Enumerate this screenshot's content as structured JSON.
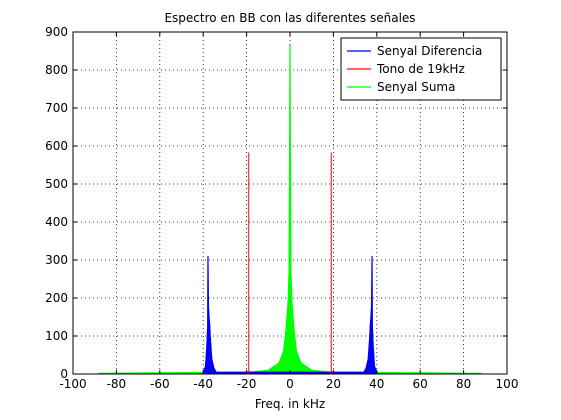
{
  "chart_data": {
    "type": "line",
    "title": "Espectro en BB con las diferentes señales",
    "xlabel": "Freq. in kHz",
    "ylabel": "",
    "xlim": [
      -100,
      100
    ],
    "ylim": [
      0,
      900
    ],
    "xticks": [
      -100,
      -80,
      -60,
      -40,
      -20,
      0,
      20,
      40,
      60,
      80,
      100
    ],
    "yticks": [
      0,
      100,
      200,
      300,
      400,
      500,
      600,
      700,
      800,
      900
    ],
    "grid": true,
    "legend_position": "top-right",
    "series": [
      {
        "name": "Senyal Diferencia",
        "color": "#0000ff",
        "x": [
          -40,
          -39,
          -38.5,
          -38,
          -37.8,
          -37.5,
          -37,
          -36.5,
          -36,
          -35,
          -34,
          34,
          35,
          36,
          36.5,
          37,
          37.5,
          37.8,
          38,
          38.5,
          39,
          40
        ],
        "y": [
          5,
          20,
          60,
          120,
          310,
          170,
          130,
          80,
          40,
          15,
          5,
          5,
          15,
          40,
          80,
          130,
          170,
          310,
          120,
          60,
          20,
          5
        ]
      },
      {
        "name": "Tono de 19kHz",
        "color": "#ff0000",
        "x": [
          -19,
          19
        ],
        "y": [
          583,
          583
        ]
      },
      {
        "name": "Senyal Suma",
        "color": "#00ff00",
        "x": [
          -88,
          -20,
          -10,
          -5,
          -3,
          -2,
          -1,
          -0.5,
          0,
          0.5,
          1,
          2,
          3,
          5,
          10,
          20,
          88
        ],
        "y": [
          2,
          5,
          10,
          30,
          60,
          110,
          180,
          260,
          865,
          260,
          180,
          110,
          60,
          30,
          10,
          5,
          2
        ]
      }
    ]
  }
}
